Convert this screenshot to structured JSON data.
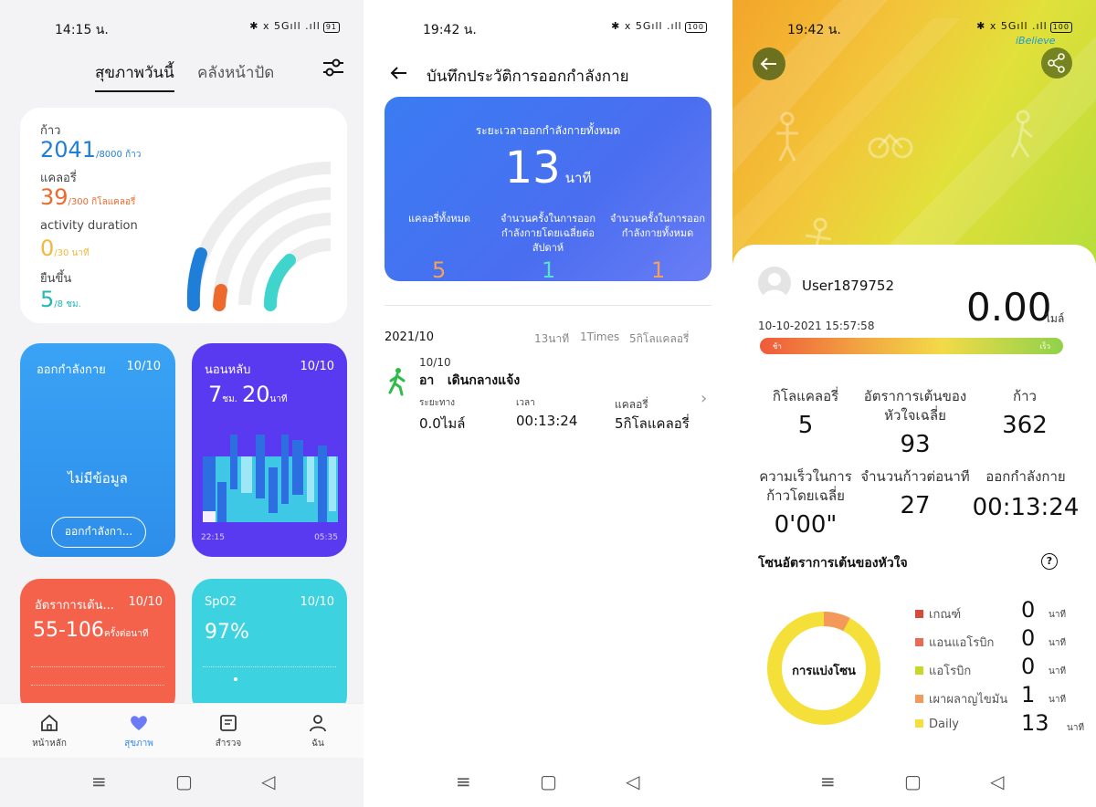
{
  "screen1": {
    "status": {
      "time": "14:15 น.",
      "icons": "✱ ⅹ 5Gıll .ıll",
      "battery": "91"
    },
    "tabs": [
      "สุขภาพวันนี้",
      "คลังหน้าปัด"
    ],
    "summary": {
      "steps_label": "ก้าว",
      "steps_value": "2041",
      "steps_goal": "/8000 ก้าว",
      "cal_label": "แคลอรี่",
      "cal_value": "39",
      "cal_goal": "/300 กิโลแคลอรี่",
      "act_label": "activity duration",
      "act_value": "0",
      "act_goal": "/30 นาที",
      "stand_label": "ยืนขึ้น",
      "stand_value": "5",
      "stand_goal": "/8 ชม."
    },
    "exercise": {
      "title": "ออกกำลังกาย",
      "date": "10/10",
      "empty": "ไม่มีข้อมูล",
      "button": "ออกกำลังกา..."
    },
    "sleep": {
      "title": "นอนหลับ",
      "date": "10/10",
      "hours": "7",
      "hours_unit": "ชม.",
      "minutes": "20",
      "minutes_unit": "นาที",
      "start": "22:15",
      "end": "05:35"
    },
    "heart": {
      "title": "อัตราการเต้น...",
      "date": "10/10",
      "value": "55-106",
      "unit": "ครั้งต่อนาที"
    },
    "spo2": {
      "title": "SpO2",
      "date": "10/10",
      "value": "97%"
    },
    "bottom_tabs": [
      {
        "label": "หน้าหลัก",
        "icon": "home-icon"
      },
      {
        "label": "สุขภาพ",
        "icon": "heart-icon"
      },
      {
        "label": "สำรวจ",
        "icon": "explore-icon"
      },
      {
        "label": "ฉัน",
        "icon": "profile-icon"
      }
    ],
    "colors": {
      "steps": "#1f7fd8",
      "cal": "#ee6a2c",
      "act": "#f3b83a",
      "stand": "#23b7b7"
    }
  },
  "screen2": {
    "status": {
      "time": "19:42 น.",
      "icons": "✱ ⅹ 5Gıll .ıll",
      "battery": "100"
    },
    "title": "บันทึกประวัติการออกกำลังกาย",
    "banner": {
      "total_label": "ระยะเวลาออกกำลังกายทั้งหมด",
      "total_value": "13",
      "total_unit": "นาที",
      "cols": [
        {
          "label": "แคลอรี่ทั้งหมด",
          "value": "5"
        },
        {
          "label": "จำนวนครั้งในการออกกำลังกายโดยเฉลี่ยต่อสัปดาห์",
          "value": "1"
        },
        {
          "label": "จำนวนครั้งในการออกกำลังกายทั้งหมด",
          "value": "1"
        }
      ]
    },
    "month": "2021/10",
    "month_summary": [
      "13นาที",
      "1Times",
      "5กิโลแคลอรี่"
    ],
    "record": {
      "date": "10/10",
      "name": "อา   เดินกลางแจ้ง",
      "dist_label": "ระยะทาง",
      "dist_value": "0.0ไมล์",
      "time_label": "เวลา",
      "time_value": "00:13:24",
      "cal_label": "แคลอรี่",
      "cal_value": "5กิโลแคลอรี่"
    }
  },
  "screen3": {
    "status": {
      "time": "19:42 น.",
      "icons": "✱ ⅹ 5Gıll .ıll",
      "battery": "100"
    },
    "watermark": "iBelieve",
    "user": "User1879752",
    "datetime": "10-10-2021 15:57:58",
    "distance": "0.00",
    "distance_unit": "ไมล์",
    "pace_slow": "ช้า",
    "pace_fast": "เร็ว",
    "stats": [
      {
        "label": "กิโลแคลอรี่",
        "value": "5"
      },
      {
        "label": "อัตราการเต้นของหัวใจเฉลี่ย",
        "value": "93"
      },
      {
        "label": "ก้าว",
        "value": "362"
      },
      {
        "label": "ความเร็วในการก้าวโดยเฉลี่ย",
        "value": "0'00\""
      },
      {
        "label": "จำนวนก้าวต่อนาที",
        "value": "27"
      },
      {
        "label": "ออกกำลังกาย",
        "value": "00:13:24"
      }
    ],
    "zone_title": "โซนอัตราการเต้นของหัวใจ",
    "donut_label": "การแบ่งโซน",
    "zones": [
      {
        "name": "เกณฑ์",
        "value": "0",
        "unit": "นาที",
        "color": "#d84a3a"
      },
      {
        "name": "แอนแอโรบิก",
        "value": "0",
        "unit": "นาที",
        "color": "#e96a55"
      },
      {
        "name": "แอโรบิก",
        "value": "0",
        "unit": "นาที",
        "color": "#c9d62a"
      },
      {
        "name": "เผาผลาญไขมัน",
        "value": "1",
        "unit": "นาที",
        "color": "#f39a5a"
      },
      {
        "name": "Daily",
        "value": "13",
        "unit": "นาที",
        "color": "#f5e03a"
      }
    ]
  }
}
